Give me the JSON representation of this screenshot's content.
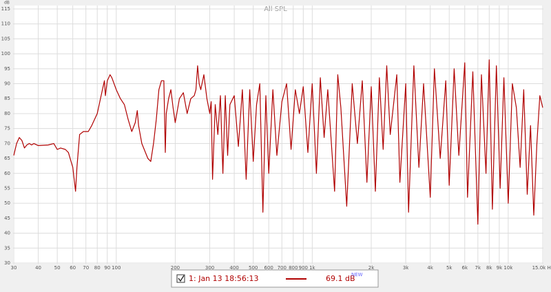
{
  "chart_data": {
    "type": "line",
    "title": "All SPL",
    "y_label": "dB",
    "xscale": "log",
    "grid": true,
    "xlim": [
      30,
      15000
    ],
    "ylim": [
      30,
      115
    ],
    "xticks": [
      30,
      40,
      50,
      60,
      70,
      80,
      90,
      100,
      200,
      300,
      400,
      500,
      600,
      700,
      800,
      900,
      {
        "value": 1000,
        "label": "1k"
      },
      {
        "value": 2000,
        "label": "2k"
      },
      {
        "value": 3000,
        "label": "3k"
      },
      {
        "value": 4000,
        "label": "4k"
      },
      {
        "value": 5000,
        "label": "5k"
      },
      {
        "value": 6000,
        "label": "6k"
      },
      {
        "value": 7000,
        "label": "7k"
      },
      {
        "value": 8000,
        "label": "8k"
      },
      {
        "value": 9000,
        "label": "9k"
      },
      {
        "value": 10000,
        "label": "10k"
      },
      {
        "value": 15000,
        "label": "15.0k Hz"
      }
    ],
    "yticks": [
      30,
      35,
      40,
      45,
      50,
      55,
      60,
      65,
      70,
      75,
      80,
      85,
      90,
      95,
      100,
      105,
      110,
      115
    ],
    "legend_value": "69.1 dB",
    "legend_badge": "NEW",
    "series": [
      {
        "name": "1: Jan 13 18:56:13",
        "color": "#b00000",
        "x": [
          30,
          31,
          32,
          33,
          34,
          35,
          36,
          37,
          38,
          40,
          45,
          48,
          50,
          52,
          55,
          57,
          60,
          61,
          62,
          63,
          65,
          68,
          72,
          75,
          80,
          85,
          87,
          88,
          90,
          93,
          95,
          100,
          105,
          110,
          115,
          120,
          125,
          128,
          130,
          135,
          145,
          150,
          155,
          160,
          165,
          170,
          175,
          178,
          180,
          185,
          190,
          195,
          200,
          210,
          220,
          230,
          240,
          250,
          255,
          260,
          265,
          270,
          280,
          290,
          300,
          305,
          310,
          320,
          330,
          340,
          350,
          360,
          370,
          380,
          400,
          420,
          440,
          460,
          480,
          500,
          520,
          540,
          560,
          580,
          600,
          630,
          660,
          700,
          740,
          780,
          820,
          860,
          900,
          950,
          1000,
          1050,
          1100,
          1150,
          1200,
          1300,
          1350,
          1400,
          1500,
          1600,
          1700,
          1800,
          1900,
          2000,
          2100,
          2200,
          2300,
          2400,
          2500,
          2700,
          2800,
          3000,
          3100,
          3300,
          3500,
          3700,
          4000,
          4200,
          4500,
          4800,
          5000,
          5300,
          5600,
          6000,
          6200,
          6600,
          7000,
          7300,
          7700,
          8000,
          8300,
          8700,
          9100,
          9500,
          10000,
          10500,
          11000,
          11500,
          12000,
          12500,
          13000,
          13500,
          14000,
          14500,
          15000
        ],
        "values": [
          66,
          70,
          72,
          71,
          68.5,
          69.5,
          70,
          69.5,
          70,
          69.3,
          69.5,
          70,
          68,
          68.5,
          68,
          67,
          62,
          58,
          54,
          62,
          73,
          74,
          74,
          76,
          80,
          88,
          91,
          86,
          91,
          93,
          92,
          88,
          85,
          83,
          78,
          74,
          77,
          81,
          76,
          70,
          65,
          64,
          70,
          78,
          88,
          91,
          91,
          67,
          80,
          85,
          88,
          82,
          77,
          85,
          87,
          80,
          85,
          86,
          88,
          96,
          90,
          88,
          93,
          85,
          80,
          84,
          58,
          83,
          73,
          86,
          60,
          86,
          66,
          83,
          86,
          69,
          88,
          58,
          88,
          64,
          83,
          90,
          47,
          86,
          60,
          88,
          66,
          84,
          90,
          68,
          88,
          80,
          89,
          67,
          90,
          60,
          92,
          72,
          88,
          54,
          93,
          82,
          49,
          90,
          70,
          91,
          57,
          89,
          54,
          92,
          68,
          96,
          73,
          93,
          57,
          90,
          47,
          96,
          62,
          90,
          52,
          95,
          65,
          91,
          56,
          95,
          66,
          97,
          52,
          94,
          43,
          93,
          60,
          98,
          48,
          96,
          55,
          92,
          50,
          90,
          82,
          62,
          88,
          53,
          76,
          46,
          70,
          86,
          82
        ]
      }
    ]
  }
}
